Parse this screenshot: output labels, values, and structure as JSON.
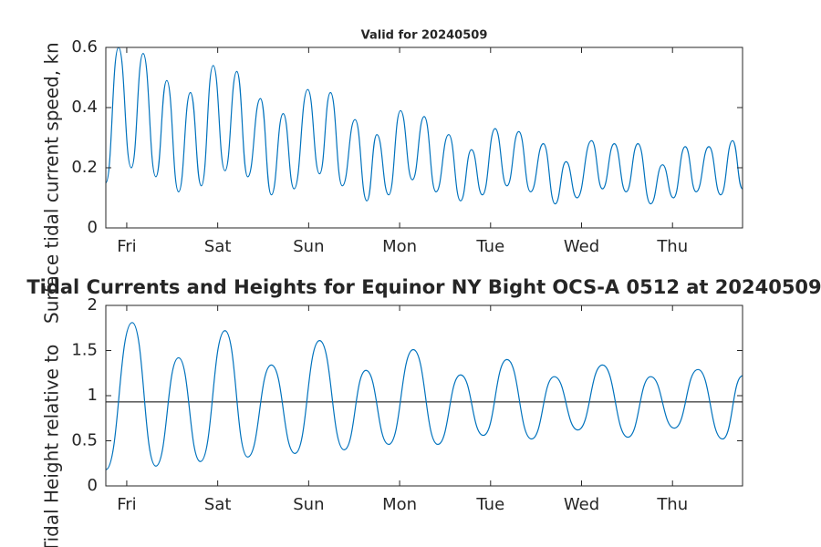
{
  "chart_data": [
    {
      "type": "line",
      "title": "Valid for 20240509",
      "ylabel": "Surface tidal current speed, kn",
      "x": [
        -0.23,
        -0.09,
        0.05,
        0.18,
        0.32,
        0.44,
        0.57,
        0.7,
        0.82,
        0.95,
        1.08,
        1.21,
        1.33,
        1.47,
        1.59,
        1.72,
        1.84,
        1.99,
        2.12,
        2.24,
        2.37,
        2.51,
        2.64,
        2.75,
        2.88,
        3.01,
        3.14,
        3.27,
        3.4,
        3.54,
        3.67,
        3.79,
        3.91,
        4.05,
        4.18,
        4.31,
        4.44,
        4.58,
        4.71,
        4.83,
        4.95,
        5.11,
        5.23,
        5.36,
        5.49,
        5.62,
        5.76,
        5.89,
        6.01,
        6.14,
        6.26,
        6.4,
        6.53,
        6.66,
        6.77
      ],
      "series": [
        {
          "color": "#0072bd",
          "values": [
            0.15,
            0.6,
            0.2,
            0.58,
            0.17,
            0.49,
            0.12,
            0.45,
            0.14,
            0.54,
            0.19,
            0.52,
            0.17,
            0.43,
            0.11,
            0.38,
            0.13,
            0.46,
            0.18,
            0.45,
            0.14,
            0.36,
            0.09,
            0.31,
            0.11,
            0.39,
            0.16,
            0.37,
            0.12,
            0.31,
            0.09,
            0.26,
            0.11,
            0.33,
            0.14,
            0.32,
            0.12,
            0.28,
            0.08,
            0.22,
            0.1,
            0.29,
            0.13,
            0.28,
            0.12,
            0.28,
            0.08,
            0.21,
            0.1,
            0.27,
            0.12,
            0.27,
            0.11,
            0.29,
            0.13
          ]
        }
      ],
      "xlim": [
        -0.23,
        6.77
      ],
      "xticks": [
        {
          "value": 0,
          "label": "Fri"
        },
        {
          "value": 1,
          "label": "Sat"
        },
        {
          "value": 2,
          "label": "Sun"
        },
        {
          "value": 3,
          "label": "Mon"
        },
        {
          "value": 4,
          "label": "Tue"
        },
        {
          "value": 5,
          "label": "Wed"
        },
        {
          "value": 6,
          "label": "Thu"
        }
      ],
      "ylim": [
        0,
        0.6
      ],
      "yticks": [
        0,
        0.2,
        0.4,
        0.6
      ],
      "grid": false
    },
    {
      "type": "line",
      "title": "Tidal Currents and Heights for Equinor NY Bight OCS-A 0512 at 20240509",
      "ylabel": "Tidal Height relative to",
      "x": [
        -0.23,
        0.06,
        0.32,
        0.57,
        0.81,
        1.08,
        1.33,
        1.59,
        1.85,
        2.12,
        2.39,
        2.63,
        2.88,
        3.15,
        3.42,
        3.67,
        3.92,
        4.18,
        4.45,
        4.7,
        4.96,
        5.23,
        5.51,
        5.76,
        6.02,
        6.28,
        6.55,
        6.77
      ],
      "series": [
        {
          "color": "#0072bd",
          "values": [
            0.18,
            1.81,
            0.22,
            1.42,
            0.27,
            1.72,
            0.32,
            1.34,
            0.36,
            1.61,
            0.4,
            1.28,
            0.46,
            1.51,
            0.46,
            1.23,
            0.56,
            1.4,
            0.52,
            1.21,
            0.62,
            1.34,
            0.54,
            1.21,
            0.64,
            1.29,
            0.52,
            1.22
          ]
        }
      ],
      "hline": 0.93,
      "hline_color": "#000000",
      "xlim": [
        -0.23,
        6.77
      ],
      "xticks": [
        {
          "value": 0,
          "label": "Fri"
        },
        {
          "value": 1,
          "label": "Sat"
        },
        {
          "value": 2,
          "label": "Sun"
        },
        {
          "value": 3,
          "label": "Mon"
        },
        {
          "value": 4,
          "label": "Tue"
        },
        {
          "value": 5,
          "label": "Wed"
        },
        {
          "value": 6,
          "label": "Thu"
        }
      ],
      "ylim": [
        0,
        2
      ],
      "yticks": [
        0,
        0.5,
        1,
        1.5,
        2
      ],
      "grid": false
    }
  ]
}
